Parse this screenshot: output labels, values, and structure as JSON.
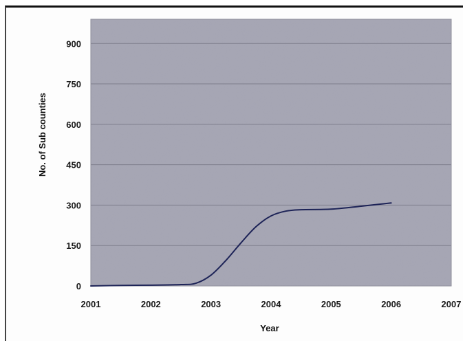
{
  "chart_data": {
    "type": "line",
    "xlabel": "Year",
    "ylabel": "No. of Sub counties",
    "xlim": [
      2001,
      2007
    ],
    "ylim": [
      0,
      990
    ],
    "x_ticks": [
      "2001",
      "2002",
      "2003",
      "2004",
      "2005",
      "2006",
      "2007"
    ],
    "y_ticks": [
      "0",
      "150",
      "300",
      "450",
      "600",
      "750",
      "900"
    ],
    "grid": "horizontal",
    "series": [
      {
        "x": [
          2001,
          2001.5,
          2002,
          2002.5,
          2002.75,
          2003,
          2003.25,
          2003.5,
          2003.75,
          2004,
          2004.25,
          2004.5,
          2005,
          2005.5,
          2006
        ],
        "y": [
          0,
          2,
          3,
          5,
          10,
          40,
          95,
          160,
          220,
          260,
          278,
          283,
          285,
          296,
          308
        ],
        "color": "#1d2357"
      }
    ],
    "colors": {
      "plot_background": "#a7a7b5",
      "gridline": "#7e7e8c",
      "line": "#1d2357"
    }
  }
}
